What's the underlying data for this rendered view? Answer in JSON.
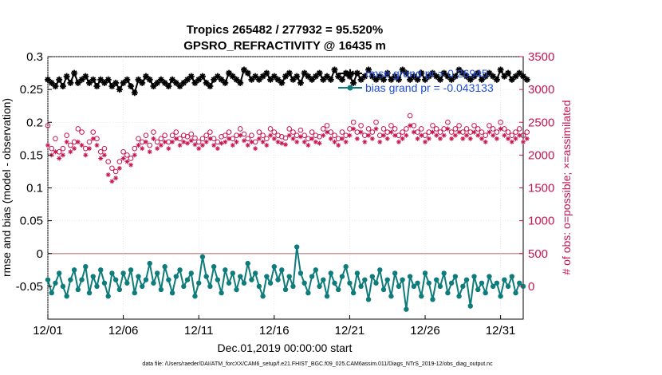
{
  "chart_data": {
    "type": "line",
    "title": "Tropics 265482 / 277932 = 95.520%",
    "subtitle": "GPSRO_REFRACTIVITY @ 16435 m",
    "xlabel": "Dec.01,2019 00:00:00 start",
    "ylabel": "rmse and bias (model - observation)",
    "ylabel_right": "# of obs: o=possible; ×=assimilated",
    "footer": "data file: /Users/raeder/DAI/ATM_forcXX/CAM6_setup/f.e21.FHIST_BGC.f09_025.CAM6assim.011/Diags_NTrS_2019-12/obs_diag_output.nc",
    "xlim": [
      0,
      31.5
    ],
    "ylim": [
      -0.1,
      0.3
    ],
    "ylim_right": [
      -500,
      3500
    ],
    "x_ticks": [
      {
        "value": 0,
        "label": "12/01"
      },
      {
        "value": 5,
        "label": "12/06"
      },
      {
        "value": 10,
        "label": "12/11"
      },
      {
        "value": 15,
        "label": "12/16"
      },
      {
        "value": 20,
        "label": "12/21"
      },
      {
        "value": 25,
        "label": "12/26"
      },
      {
        "value": 30,
        "label": "12/31"
      }
    ],
    "y_ticks": [
      {
        "value": 0.3,
        "label": "0.3"
      },
      {
        "value": 0.25,
        "label": "0.25"
      },
      {
        "value": 0.2,
        "label": "0.2"
      },
      {
        "value": 0.15,
        "label": "0.15"
      },
      {
        "value": 0.1,
        "label": "0.1"
      },
      {
        "value": 0.05,
        "label": "0.05"
      },
      {
        "value": 0,
        "label": "0"
      },
      {
        "value": -0.05,
        "label": "-0.05"
      }
    ],
    "y_ticks_right": [
      {
        "value": 3500,
        "label": "3500"
      },
      {
        "value": 3000,
        "label": "3000"
      },
      {
        "value": 2500,
        "label": "2500"
      },
      {
        "value": 2000,
        "label": "2000"
      },
      {
        "value": 1500,
        "label": "1500"
      },
      {
        "value": 1000,
        "label": "1000"
      },
      {
        "value": 500,
        "label": "500"
      },
      {
        "value": 0,
        "label": "0"
      }
    ],
    "zero_line": 0,
    "grid": true,
    "legend": {
      "location": "top-right",
      "entries": [
        {
          "label": "rmse grand pr = 0.26945",
          "series": "rmse"
        },
        {
          "label": "bias grand pr = -0.043133",
          "series": "bias"
        }
      ]
    },
    "series": [
      {
        "name": "rmse",
        "axis": "left",
        "color": "#000000",
        "marker": "asterisk",
        "x_start": 0,
        "x_step": 0.25,
        "values": [
          0.265,
          0.26,
          0.255,
          0.265,
          0.255,
          0.27,
          0.26,
          0.275,
          0.26,
          0.265,
          0.27,
          0.26,
          0.265,
          0.255,
          0.265,
          0.26,
          0.265,
          0.255,
          0.26,
          0.25,
          0.26,
          0.265,
          0.255,
          0.245,
          0.265,
          0.26,
          0.27,
          0.265,
          0.255,
          0.26,
          0.265,
          0.26,
          0.255,
          0.265,
          0.26,
          0.255,
          0.26,
          0.265,
          0.27,
          0.26,
          0.265,
          0.27,
          0.26,
          0.255,
          0.265,
          0.27,
          0.265,
          0.26,
          0.275,
          0.27,
          0.265,
          0.26,
          0.28,
          0.275,
          0.265,
          0.27,
          0.265,
          0.27,
          0.275,
          0.265,
          0.27,
          0.265,
          0.26,
          0.27,
          0.275,
          0.265,
          0.27,
          0.26,
          0.275,
          0.27,
          0.265,
          0.27,
          0.275,
          0.265,
          0.27,
          0.265,
          0.28,
          0.27,
          0.265,
          0.275,
          0.27,
          0.26,
          0.275,
          0.265,
          0.27,
          0.28,
          0.27,
          0.265,
          0.27,
          0.265,
          0.275,
          0.265,
          0.27,
          0.265,
          0.28,
          0.275,
          0.265,
          0.27,
          0.265,
          0.275,
          0.265,
          0.27,
          0.275,
          0.27,
          0.265,
          0.275,
          0.27,
          0.265,
          0.27,
          0.28,
          0.275,
          0.27,
          0.265,
          0.27,
          0.275,
          0.265,
          0.27,
          0.275,
          0.27,
          0.265,
          0.28,
          0.27,
          0.275,
          0.265,
          0.27,
          0.275,
          0.27,
          0.265
        ]
      },
      {
        "name": "bias",
        "axis": "left",
        "color": "#0e7c7b",
        "marker": "dot",
        "x_start": 0,
        "x_step": 0.25,
        "values": [
          -0.04,
          -0.06,
          -0.045,
          -0.03,
          -0.05,
          -0.065,
          -0.04,
          -0.025,
          -0.055,
          -0.04,
          -0.02,
          -0.06,
          -0.035,
          -0.05,
          -0.025,
          -0.045,
          -0.065,
          -0.03,
          -0.04,
          -0.055,
          -0.03,
          -0.045,
          -0.025,
          -0.06,
          -0.035,
          -0.05,
          -0.04,
          -0.015,
          -0.045,
          -0.03,
          -0.055,
          -0.02,
          -0.04,
          -0.06,
          -0.035,
          -0.025,
          -0.05,
          -0.04,
          -0.03,
          -0.065,
          -0.045,
          -0.005,
          -0.035,
          -0.05,
          -0.02,
          -0.04,
          -0.06,
          -0.025,
          -0.045,
          -0.03,
          -0.055,
          -0.035,
          -0.045,
          -0.015,
          -0.04,
          -0.03,
          -0.05,
          -0.065,
          -0.035,
          -0.045,
          -0.02,
          -0.04,
          -0.025,
          -0.055,
          -0.035,
          -0.05,
          0.01,
          -0.03,
          -0.045,
          -0.06,
          -0.035,
          -0.025,
          -0.05,
          -0.04,
          -0.065,
          -0.03,
          -0.045,
          -0.055,
          -0.035,
          -0.02,
          -0.045,
          -0.06,
          -0.03,
          -0.05,
          -0.04,
          -0.07,
          -0.035,
          -0.045,
          -0.025,
          -0.055,
          -0.04,
          -0.065,
          -0.03,
          -0.05,
          -0.04,
          -0.085,
          -0.035,
          -0.05,
          -0.045,
          -0.065,
          -0.03,
          -0.045,
          -0.07,
          -0.04,
          -0.05,
          -0.03,
          -0.06,
          -0.045,
          -0.035,
          -0.065,
          -0.05,
          -0.04,
          -0.08,
          -0.035,
          -0.055,
          -0.045,
          -0.06,
          -0.035,
          -0.05,
          -0.045,
          -0.065,
          -0.04,
          -0.05,
          -0.035,
          -0.06,
          -0.045,
          -0.05
        ]
      },
      {
        "name": "obs possible",
        "axis": "right",
        "color": "#c7154f",
        "marker": "circle",
        "x_start": 0,
        "x_step": 0.25,
        "values": [
          2450,
          2100,
          2250,
          2050,
          2100,
          2300,
          2150,
          2200,
          2400,
          2350,
          2100,
          2200,
          2350,
          2250,
          2050,
          2100,
          1900,
          1800,
          1750,
          1900,
          2050,
          2000,
          1950,
          2100,
          2250,
          2200,
          2300,
          2150,
          2350,
          2200,
          2250,
          2300,
          2200,
          2300,
          2350,
          2250,
          2300,
          2280,
          2320,
          2260,
          2200,
          2250,
          2300,
          2350,
          2250,
          2200,
          2280,
          2300,
          2350,
          2250,
          2300,
          2400,
          2320,
          2250,
          2300,
          2200,
          2350,
          2300,
          2250,
          2400,
          2350,
          2300,
          2280,
          2260,
          2400,
          2350,
          2300,
          2380,
          2300,
          2250,
          2350,
          2300,
          2280,
          2400,
          2450,
          2350,
          2300,
          2250,
          2350,
          2300,
          2400,
          2500,
          2350,
          2450,
          2300,
          2400,
          2350,
          2500,
          2300,
          2400,
          2350,
          2450,
          2400,
          2300,
          2350,
          2400,
          2600,
          2450,
          2350,
          2400,
          2300,
          2350,
          2450,
          2400,
          2350,
          2400,
          2500,
          2350,
          2400,
          2450,
          2350,
          2400,
          2350,
          2450,
          2400,
          2350,
          2300,
          2450,
          2400,
          2350,
          2500,
          2400,
          2350,
          2300,
          2350,
          2400,
          2300,
          2350
        ]
      },
      {
        "name": "obs assimilated",
        "axis": "right",
        "color": "#c7154f",
        "marker": "asterisk",
        "x_start": 0,
        "x_step": 0.25,
        "values": [
          2150,
          2000,
          2050,
          1950,
          2000,
          2200,
          2050,
          2100,
          2200,
          2150,
          2000,
          2100,
          2250,
          2150,
          1950,
          2000,
          1700,
          1600,
          1650,
          1800,
          1950,
          1900,
          1850,
          2000,
          2150,
          2100,
          2200,
          2050,
          2250,
          2100,
          2150,
          2200,
          2100,
          2200,
          2250,
          2150,
          2200,
          2180,
          2220,
          2160,
          2100,
          2150,
          2200,
          2250,
          2150,
          2100,
          2180,
          2200,
          2250,
          2150,
          2200,
          2300,
          2220,
          2150,
          2200,
          2100,
          2250,
          2200,
          2150,
          2300,
          2250,
          2200,
          2180,
          2160,
          2300,
          2250,
          2200,
          2280,
          2200,
          2150,
          2250,
          2200,
          2180,
          2300,
          2350,
          2250,
          2200,
          2150,
          2250,
          2200,
          2300,
          2400,
          2250,
          2350,
          2200,
          2300,
          2250,
          2400,
          2200,
          2300,
          2250,
          2350,
          2300,
          2200,
          2250,
          2300,
          2450,
          2350,
          2250,
          2300,
          2200,
          2250,
          2350,
          2300,
          2250,
          2300,
          2400,
          2250,
          2300,
          2350,
          2250,
          2300,
          2250,
          2350,
          2300,
          2250,
          2200,
          2350,
          2300,
          2250,
          2400,
          2300,
          2250,
          2200,
          2250,
          2300,
          2200,
          2250
        ]
      }
    ]
  }
}
